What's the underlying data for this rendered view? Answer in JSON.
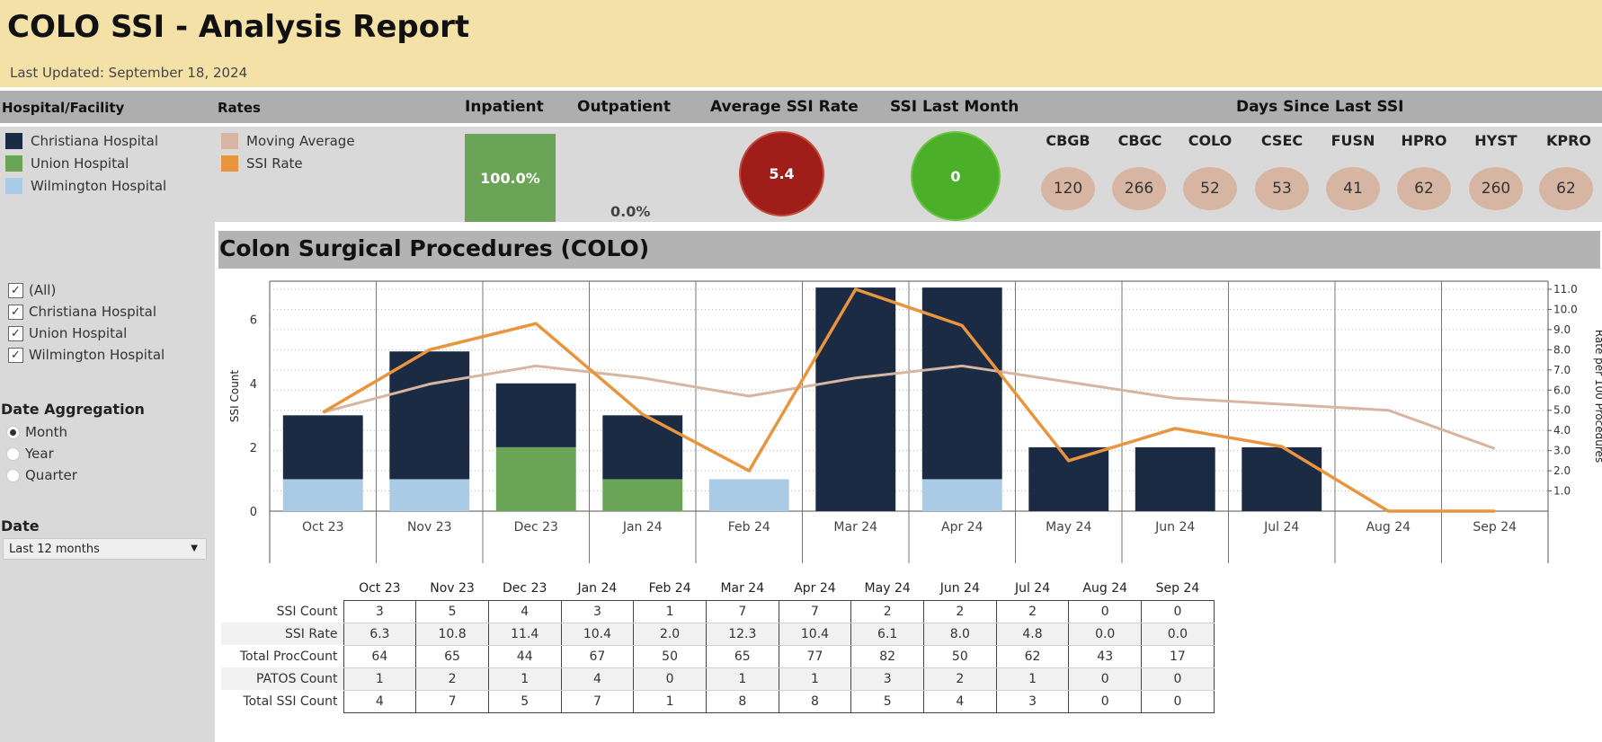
{
  "header": {
    "title": "COLO SSI - Analysis Report",
    "last_updated": "Last Updated: September 18, 2024"
  },
  "columns": {
    "facility": "Hospital/Facility",
    "rates": "Rates",
    "inpatient": "Inpatient",
    "outpatient": "Outpatient",
    "avg_ssi_rate": "Average SSI  Rate",
    "ssi_last_month": "SSI Last Month",
    "days_since": "Days Since Last SSI"
  },
  "facility_legend": [
    {
      "label": "Christiana Hospital",
      "color": "#1c2b44"
    },
    {
      "label": "Union Hospital",
      "color": "#6aa457"
    },
    {
      "label": "Wilmington Hospital",
      "color": "#a9cbe6"
    }
  ],
  "rates_legend": [
    {
      "label": "Moving Average",
      "color": "#d7b5a3"
    },
    {
      "label": "SSI Rate",
      "color": "#e8953e"
    }
  ],
  "kpis": {
    "inpatient": "100.0%",
    "outpatient": "0.0%",
    "avg_ssi_rate": "5.4",
    "avg_color": "#a01e1a",
    "ssi_last_month": "0",
    "last_month_color": "#4caf2a"
  },
  "days_since": [
    {
      "code": "CBGB",
      "days": "120"
    },
    {
      "code": "CBGC",
      "days": "266"
    },
    {
      "code": "COLO",
      "days": "52"
    },
    {
      "code": "CSEC",
      "days": "53"
    },
    {
      "code": "FUSN",
      "days": "41"
    },
    {
      "code": "HPRO",
      "days": "62"
    },
    {
      "code": "HYST",
      "days": "260"
    },
    {
      "code": "KPRO",
      "days": "62"
    }
  ],
  "filters": {
    "facility_options": [
      {
        "label": "(All)",
        "checked": true
      },
      {
        "label": "Christiana Hospital",
        "checked": true
      },
      {
        "label": "Union Hospital",
        "checked": true
      },
      {
        "label": "Wilmington Hospital",
        "checked": true
      }
    ],
    "date_aggregation_label": "Date Aggregation",
    "aggregation_options": [
      {
        "label": "Month",
        "selected": true
      },
      {
        "label": "Year",
        "selected": false
      },
      {
        "label": "Quarter",
        "selected": false
      }
    ],
    "date_label": "Date",
    "date_value": "Last 12 months"
  },
  "chart_title": "Colon Surgical Procedures (COLO)",
  "chart_data": {
    "type": "bar",
    "categories": [
      "Oct 23",
      "Nov 23",
      "Dec 23",
      "Jan 24",
      "Feb 24",
      "Mar 24",
      "Apr 24",
      "May 24",
      "Jun 24",
      "Jul 24",
      "Aug 24",
      "Sep 24"
    ],
    "series": [
      {
        "name": "Christiana Hospital",
        "values": [
          2,
          4,
          2,
          2,
          0,
          7,
          6,
          2,
          2,
          2,
          0,
          0
        ],
        "color": "#1c2b44"
      },
      {
        "name": "Union Hospital",
        "values": [
          0,
          0,
          2,
          1,
          0,
          0,
          0,
          0,
          0,
          0,
          0,
          0
        ],
        "color": "#6aa457"
      },
      {
        "name": "Wilmington Hospital",
        "values": [
          1,
          1,
          0,
          0,
          1,
          0,
          1,
          0,
          0,
          0,
          0,
          0
        ],
        "color": "#a9cbe6"
      }
    ],
    "lines": [
      {
        "name": "SSI Rate",
        "values": [
          4.9,
          8.0,
          9.3,
          4.8,
          2.0,
          11.0,
          9.2,
          2.5,
          4.1,
          3.2,
          0.0,
          0.0
        ],
        "color": "#e8953e"
      },
      {
        "name": "Moving Average",
        "values": [
          4.9,
          6.3,
          7.2,
          6.6,
          5.7,
          6.6,
          7.2,
          6.4,
          5.6,
          5.3,
          5.0,
          3.1
        ],
        "color": "#d7b5a3"
      }
    ],
    "ylabel": "SSI Count",
    "ylabel_right": "Rate per 100 Procedures",
    "ylim": [
      0,
      7.2
    ],
    "yticks": [
      0,
      2,
      4,
      6
    ],
    "ylim_right": [
      0,
      11.4
    ],
    "yticks_right": [
      "1.0",
      "2.0",
      "3.0",
      "4.0",
      "5.0",
      "6.0",
      "7.0",
      "8.0",
      "9.0",
      "10.0",
      "11.0"
    ],
    "grid": true
  },
  "table": {
    "columns": [
      "Oct 23",
      "Nov 23",
      "Dec 23",
      "Jan 24",
      "Feb 24",
      "Mar 24",
      "Apr 24",
      "May 24",
      "Jun 24",
      "Jul 24",
      "Aug 24",
      "Sep 24"
    ],
    "rows": [
      {
        "label": "SSI Count",
        "values": [
          "3",
          "5",
          "4",
          "3",
          "1",
          "7",
          "7",
          "2",
          "2",
          "2",
          "0",
          "0"
        ]
      },
      {
        "label": "SSI Rate",
        "values": [
          "6.3",
          "10.8",
          "11.4",
          "10.4",
          "2.0",
          "12.3",
          "10.4",
          "6.1",
          "8.0",
          "4.8",
          "0.0",
          "0.0"
        ]
      },
      {
        "label": "Total ProcCount",
        "values": [
          "64",
          "65",
          "44",
          "67",
          "50",
          "65",
          "77",
          "82",
          "50",
          "62",
          "43",
          "17"
        ]
      },
      {
        "label": "PATOS Count",
        "values": [
          "1",
          "2",
          "1",
          "4",
          "0",
          "1",
          "1",
          "3",
          "2",
          "1",
          "0",
          "0"
        ]
      },
      {
        "label": "Total SSI Count",
        "values": [
          "4",
          "7",
          "5",
          "7",
          "1",
          "8",
          "8",
          "5",
          "4",
          "3",
          "0",
          "0"
        ]
      }
    ]
  }
}
